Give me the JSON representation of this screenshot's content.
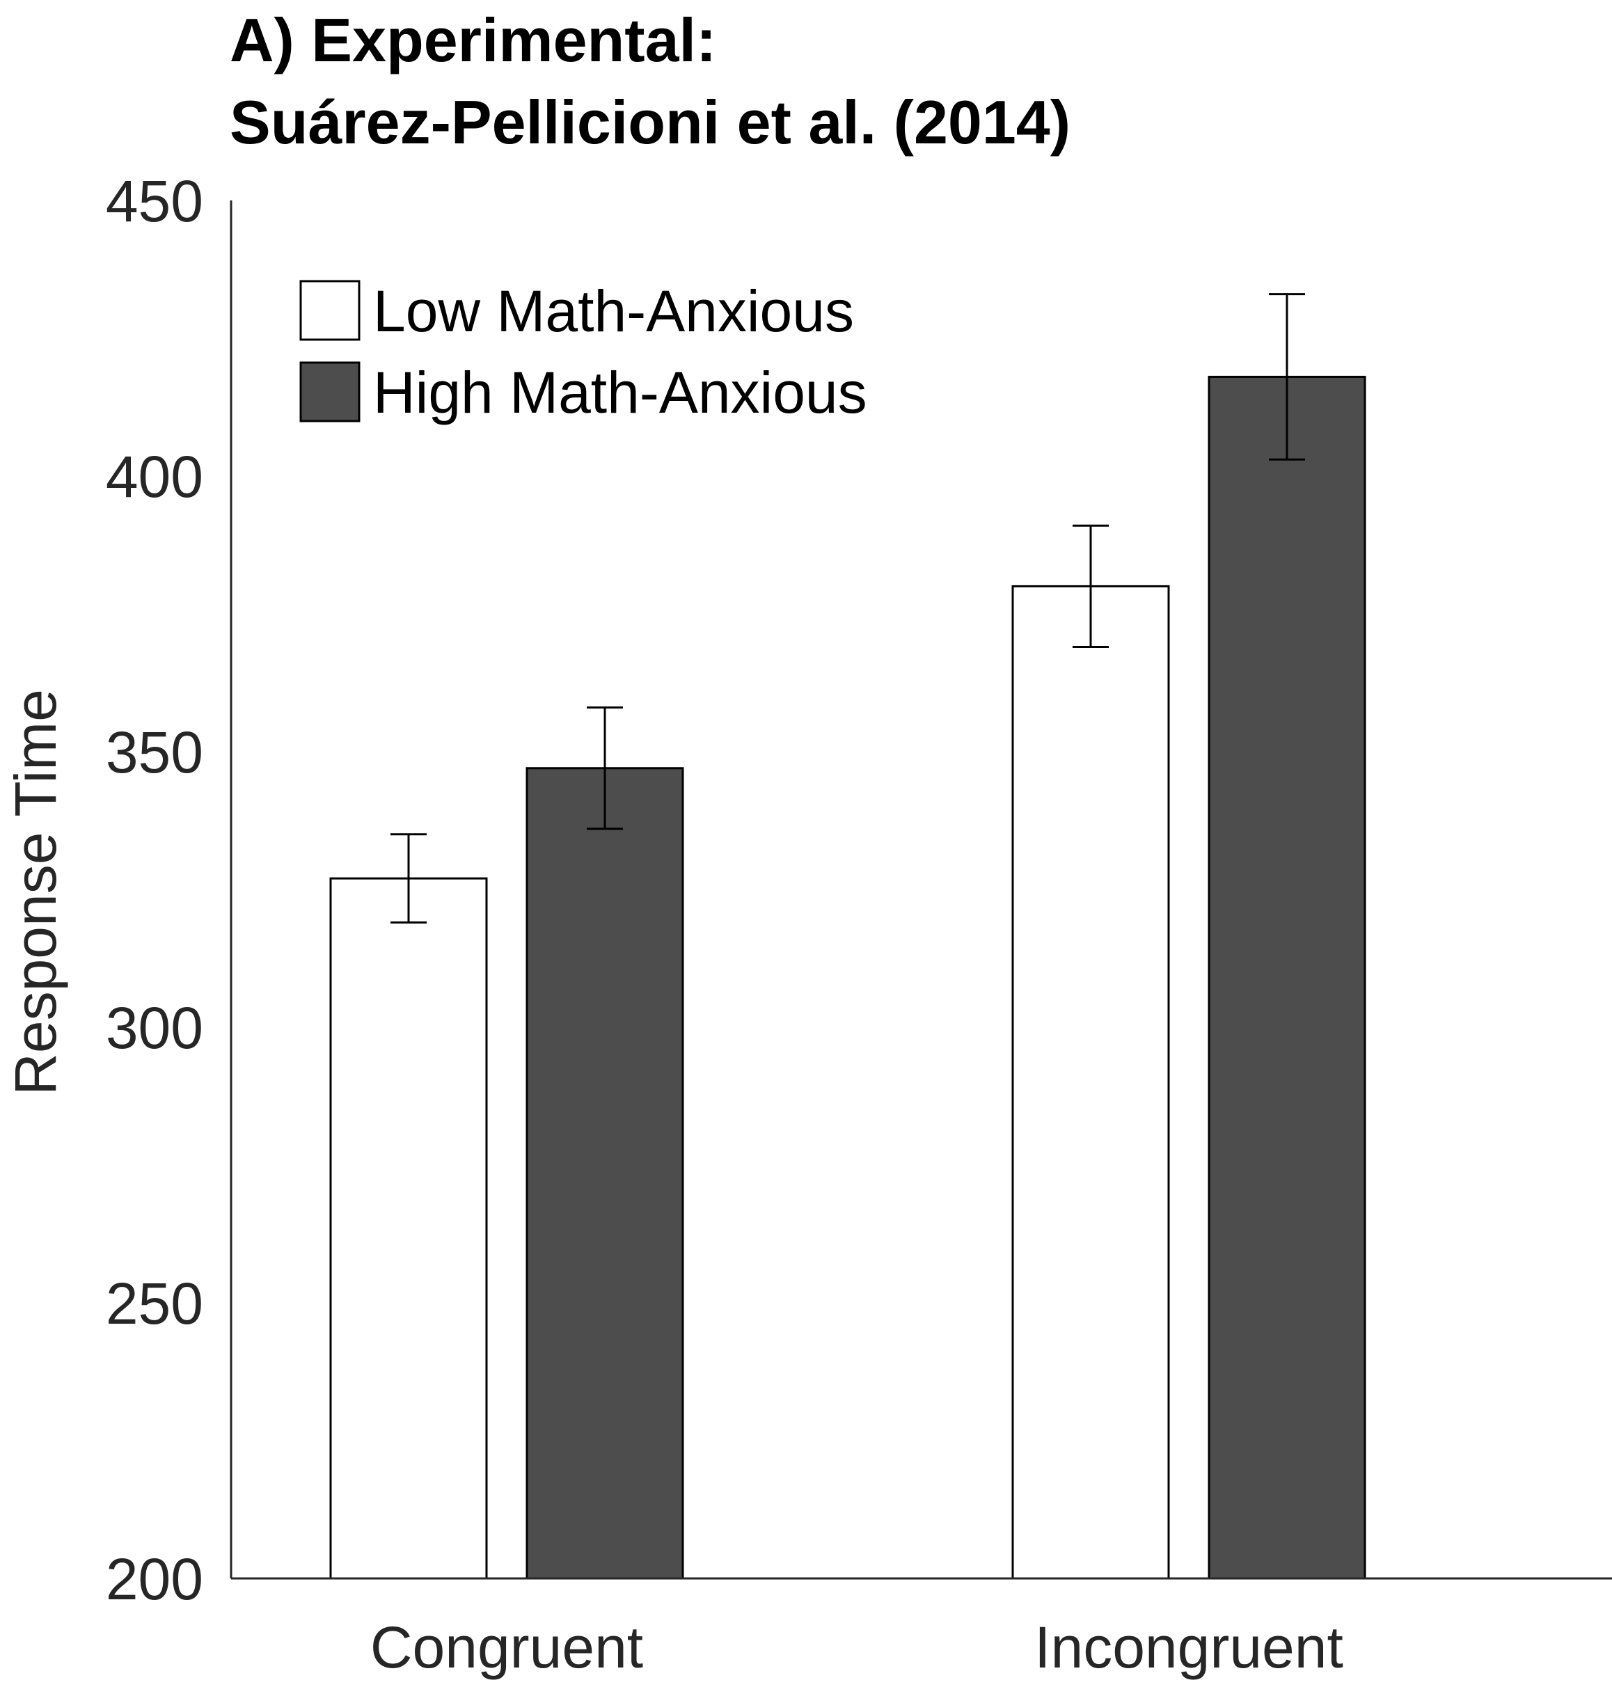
{
  "chart_data": {
    "type": "bar",
    "title_lines": [
      "A) Experimental:",
      "Suárez-Pellicioni et al. (2014)"
    ],
    "xlabel": "",
    "ylabel": "Response Time",
    "ylim": [
      200,
      450
    ],
    "yticks": [
      200,
      250,
      300,
      350,
      400,
      450
    ],
    "categories": [
      "Congruent",
      "Incongruent"
    ],
    "series": [
      {
        "name": "Low Math-Anxious",
        "color": "#ffffff",
        "values": [
          327,
          380
        ],
        "error": [
          8,
          11
        ]
      },
      {
        "name": "High Math-Anxious",
        "color": "#4d4d4d",
        "values": [
          347,
          418
        ],
        "error": [
          11,
          15
        ]
      }
    ],
    "legend_position": "top-left",
    "grid": false
  }
}
